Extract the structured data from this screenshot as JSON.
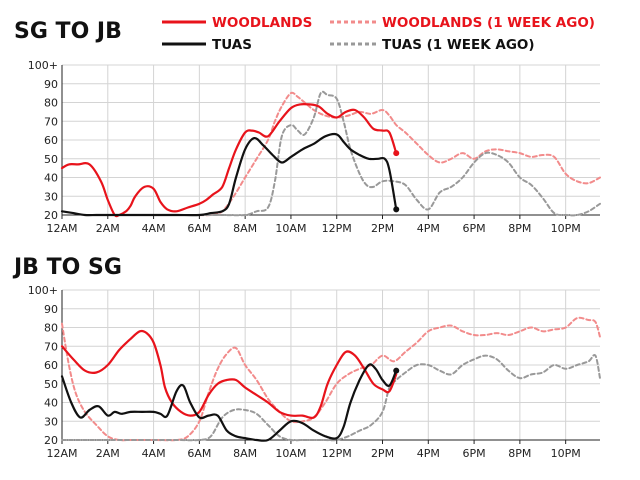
{
  "chart_data": [
    {
      "type": "line",
      "title": "SG TO JB",
      "categories": [
        "12AM",
        "2AM",
        "4AM",
        "6AM",
        "8AM",
        "10AM",
        "12PM",
        "2PM",
        "4PM",
        "6PM",
        "8PM",
        "10PM"
      ],
      "y_tick_labels": [
        "20",
        "30",
        "40",
        "50",
        "60",
        "70",
        "80",
        "90",
        "100+"
      ],
      "ylim": [
        20,
        100
      ],
      "xlim_hours": [
        0,
        23.5
      ],
      "series": [
        {
          "name": "WOODLANDS",
          "color": "#e8131b",
          "style": "solid",
          "end_marker": true,
          "x": [
            0,
            0.3,
            0.7,
            1.2,
            1.7,
            2,
            2.3,
            2.5,
            2.8,
            3,
            3.2,
            3.6,
            4,
            4.3,
            4.6,
            5,
            5.5,
            6,
            6.3,
            6.6,
            7,
            7.3,
            7.6,
            8,
            8.3,
            8.6,
            9,
            9.5,
            10,
            10.4,
            10.8,
            11.2,
            11.6,
            12,
            12.4,
            12.8,
            13.2,
            13.6,
            14,
            14.3,
            14.6
          ],
          "y": [
            45,
            47,
            47,
            47,
            38,
            28,
            20,
            20,
            22,
            25,
            30,
            35,
            34,
            27,
            23,
            22,
            24,
            26,
            28,
            31,
            35,
            45,
            55,
            64,
            65,
            64,
            62,
            70,
            77,
            79,
            79,
            78,
            74,
            72,
            75,
            76,
            72,
            66,
            65,
            64,
            53
          ]
        },
        {
          "name": "TUAS",
          "color": "#111111",
          "style": "solid",
          "end_marker": true,
          "x": [
            0,
            0.5,
            1,
            1.5,
            2,
            3,
            4,
            5,
            6,
            6.5,
            7,
            7.3,
            7.6,
            8,
            8.4,
            8.8,
            9.2,
            9.6,
            10,
            10.5,
            11,
            11.5,
            12,
            12.3,
            12.6,
            13,
            13.4,
            13.8,
            14.1,
            14.3,
            14.6
          ],
          "y": [
            22,
            21,
            20,
            20,
            20,
            20,
            20,
            20,
            20,
            21,
            22,
            26,
            40,
            55,
            61,
            57,
            52,
            48,
            51,
            55,
            58,
            62,
            63,
            59,
            55,
            52,
            50,
            50,
            50,
            44,
            23
          ]
        },
        {
          "name": "WOODLANDS (1 WEEK AGO)",
          "color": "#f28b8b",
          "style": "dashed",
          "x": [
            6,
            6.5,
            7,
            7.5,
            8,
            8.5,
            9,
            9.3,
            9.6,
            10,
            10.3,
            10.6,
            11,
            11.5,
            12,
            12.5,
            13,
            13.5,
            14,
            14.3,
            14.6,
            15,
            15.5,
            16,
            16.5,
            17,
            17.5,
            18,
            18.5,
            19,
            19.5,
            20,
            20.5,
            21,
            21.5,
            22,
            22.5,
            23,
            23.5
          ],
          "y": [
            20,
            20,
            22,
            30,
            40,
            50,
            60,
            70,
            78,
            85,
            83,
            80,
            76,
            73,
            72,
            73,
            75,
            74,
            76,
            73,
            68,
            64,
            58,
            52,
            48,
            50,
            53,
            50,
            54,
            55,
            54,
            53,
            51,
            52,
            51,
            42,
            38,
            37,
            40
          ]
        },
        {
          "name": "TUAS (1 WEEK AGO)",
          "color": "#999999",
          "style": "dashed",
          "x": [
            6,
            7,
            8,
            8.5,
            9,
            9.3,
            9.6,
            10,
            10.3,
            10.6,
            11,
            11.3,
            11.6,
            12,
            12.3,
            12.6,
            13,
            13.3,
            13.6,
            14,
            14.5,
            15,
            15.5,
            16,
            16.5,
            17,
            17.5,
            18,
            18.5,
            19,
            19.5,
            20,
            20.5,
            21,
            21.5,
            22,
            22.5,
            23,
            23.5
          ],
          "y": [
            20,
            20,
            20,
            22,
            24,
            38,
            62,
            68,
            65,
            63,
            72,
            85,
            84,
            82,
            70,
            55,
            42,
            36,
            35,
            38,
            38,
            36,
            28,
            23,
            32,
            35,
            40,
            48,
            53,
            52,
            48,
            40,
            36,
            29,
            21,
            20,
            20,
            22,
            26
          ]
        }
      ]
    },
    {
      "type": "line",
      "title": "JB TO SG",
      "categories": [
        "12AM",
        "2AM",
        "4AM",
        "6AM",
        "8AM",
        "10AM",
        "12PM",
        "2PM",
        "4PM",
        "6PM",
        "8PM",
        "10PM"
      ],
      "y_tick_labels": [
        "20",
        "30",
        "40",
        "50",
        "60",
        "70",
        "80",
        "90",
        "100+"
      ],
      "ylim": [
        20,
        100
      ],
      "xlim_hours": [
        0,
        23.5
      ],
      "series": [
        {
          "name": "WOODLANDS",
          "color": "#e8131b",
          "style": "solid",
          "end_marker": false,
          "x": [
            0,
            0.5,
            1,
            1.5,
            2,
            2.5,
            3,
            3.4,
            3.7,
            4,
            4.3,
            4.5,
            4.8,
            5.2,
            5.6,
            6,
            6.4,
            6.8,
            7.2,
            7.6,
            8,
            8.5,
            9,
            9.5,
            10,
            10.5,
            11,
            11.3,
            11.6,
            12,
            12.4,
            12.8,
            13.2,
            13.6,
            14,
            14.3,
            14.6
          ],
          "y": [
            70,
            63,
            57,
            56,
            60,
            68,
            74,
            78,
            77,
            72,
            60,
            48,
            40,
            35,
            33,
            35,
            44,
            50,
            52,
            52,
            48,
            44,
            40,
            35,
            33,
            33,
            32,
            38,
            50,
            60,
            67,
            65,
            58,
            50,
            47,
            46,
            55
          ]
        },
        {
          "name": "TUAS",
          "color": "#111111",
          "style": "solid",
          "end_marker": true,
          "x": [
            0,
            0.4,
            0.8,
            1.2,
            1.6,
            2,
            2.3,
            2.6,
            3,
            3.5,
            4,
            4.3,
            4.6,
            5,
            5.3,
            5.6,
            6,
            6.4,
            6.8,
            7.2,
            7.6,
            8,
            8.5,
            9,
            9.5,
            10,
            10.5,
            11,
            11.5,
            12,
            12.3,
            12.6,
            13,
            13.4,
            13.7,
            14,
            14.3,
            14.6
          ],
          "y": [
            54,
            40,
            32,
            36,
            38,
            33,
            35,
            34,
            35,
            35,
            35,
            34,
            33,
            46,
            49,
            40,
            32,
            33,
            33,
            25,
            22,
            21,
            20,
            20,
            25,
            30,
            29,
            25,
            22,
            21,
            27,
            40,
            52,
            60,
            58,
            52,
            49,
            57
          ]
        },
        {
          "name": "WOODLANDS (1 WEEK AGO)",
          "color": "#f28b8b",
          "style": "dashed",
          "x": [
            0,
            0.3,
            0.6,
            1,
            1.5,
            2,
            2.5,
            3,
            4,
            5,
            5.5,
            6,
            6.4,
            6.8,
            7.2,
            7.6,
            8,
            8.5,
            9,
            9.5,
            10,
            10.5,
            11,
            11.5,
            12,
            12.5,
            13,
            13.5,
            14,
            14.5,
            15,
            15.5,
            16,
            16.5,
            17,
            17.5,
            18,
            18.5,
            19,
            19.5,
            20,
            20.5,
            21,
            21.5,
            22,
            22.5,
            23,
            23.3,
            23.5
          ],
          "y": [
            82,
            60,
            45,
            35,
            28,
            22,
            20,
            20,
            20,
            20,
            22,
            30,
            45,
            58,
            66,
            69,
            60,
            52,
            42,
            35,
            30,
            30,
            32,
            40,
            50,
            55,
            58,
            60,
            65,
            62,
            67,
            72,
            78,
            80,
            81,
            78,
            76,
            76,
            77,
            76,
            78,
            80,
            78,
            79,
            80,
            85,
            84,
            83,
            75
          ]
        },
        {
          "name": "TUAS (1 WEEK AGO)",
          "color": "#999999",
          "style": "dashed",
          "x": [
            0,
            0.5,
            1,
            2,
            3,
            4,
            5,
            6,
            6.5,
            7,
            7.5,
            8,
            8.5,
            9,
            9.5,
            10,
            10.5,
            11,
            11.5,
            12,
            12.5,
            13,
            13.5,
            14,
            14.3,
            14.6,
            15,
            15.5,
            16,
            16.5,
            17,
            17.5,
            18,
            18.5,
            19,
            19.5,
            20,
            20.5,
            21,
            21.5,
            22,
            22.5,
            23,
            23.3,
            23.5
          ],
          "y": [
            20,
            20,
            20,
            20,
            20,
            20,
            20,
            20,
            22,
            32,
            36,
            36,
            34,
            28,
            22,
            20,
            20,
            20,
            20,
            20,
            22,
            25,
            28,
            35,
            48,
            52,
            56,
            60,
            60,
            57,
            55,
            60,
            63,
            65,
            63,
            57,
            53,
            55,
            56,
            60,
            58,
            60,
            62,
            65,
            53
          ]
        }
      ]
    }
  ],
  "legend": {
    "woodlands": "WOODLANDS",
    "woodlands_week": "WOODLANDS (1 WEEK AGO)",
    "tuas": "TUAS",
    "tuas_week": "TUAS (1 WEEK AGO)"
  },
  "colors": {
    "woodlands": "#e8131b",
    "tuas": "#111111",
    "woodlands_week": "#f28b8b",
    "tuas_week": "#999999",
    "grid": "#d4d4d4"
  }
}
